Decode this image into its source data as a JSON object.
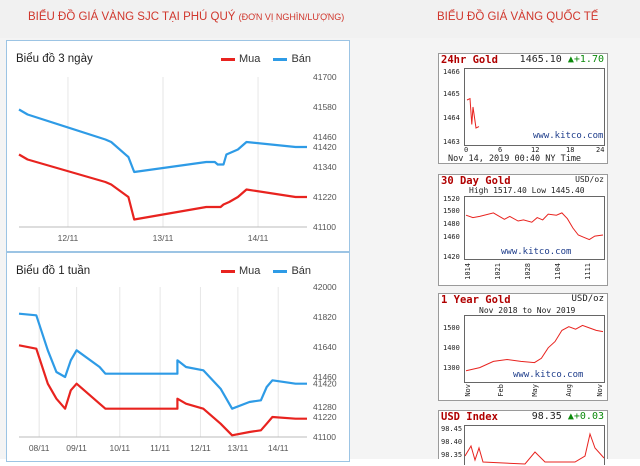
{
  "header": {
    "left_title": "BIỂU ĐỒ GIÁ VÀNG SJC TẠI PHÚ QUÝ",
    "left_unit": "(ĐƠN VỊ NGHÌN/LƯỢNG)",
    "right_title": "BIỂU ĐỒ GIÁ VÀNG QUỐC TẾ"
  },
  "colors": {
    "mua": "#e8231f",
    "ban": "#2e9be6",
    "brand_red": "#d0362c"
  },
  "chart_data": [
    {
      "type": "line",
      "title": "Biểu đồ 3 ngày",
      "legend": [
        "Mua",
        "Bán"
      ],
      "legend_position": "top-right",
      "ylim": [
        41100,
        41700
      ],
      "yticks": [
        41100,
        41220,
        41340,
        41420,
        41460,
        41580,
        41700
      ],
      "xticks": [
        {
          "t": 0.17,
          "label": "12/11"
        },
        {
          "t": 0.5,
          "label": "13/11"
        },
        {
          "t": 0.83,
          "label": "14/11"
        }
      ],
      "series": [
        {
          "name": "Bán",
          "color": "#2e9be6",
          "points": [
            [
              0,
              41570
            ],
            [
              0.03,
              41550
            ],
            [
              0.3,
              41450
            ],
            [
              0.32,
              41440
            ],
            [
              0.38,
              41380
            ],
            [
              0.4,
              41320
            ],
            [
              0.65,
              41360
            ],
            [
              0.68,
              41360
            ],
            [
              0.69,
              41350
            ],
            [
              0.7,
              41350
            ],
            [
              0.71,
              41350
            ],
            [
              0.72,
              41390
            ],
            [
              0.76,
              41410
            ],
            [
              0.79,
              41440
            ],
            [
              0.96,
              41420
            ],
            [
              1,
              41420
            ]
          ]
        },
        {
          "name": "Mua",
          "color": "#e8231f",
          "points": [
            [
              0,
              41390
            ],
            [
              0.03,
              41370
            ],
            [
              0.3,
              41280
            ],
            [
              0.32,
              41270
            ],
            [
              0.38,
              41220
            ],
            [
              0.4,
              41130
            ],
            [
              0.65,
              41180
            ],
            [
              0.68,
              41180
            ],
            [
              0.69,
              41180
            ],
            [
              0.7,
              41180
            ],
            [
              0.71,
              41190
            ],
            [
              0.73,
              41200
            ],
            [
              0.76,
              41220
            ],
            [
              0.79,
              41250
            ],
            [
              0.96,
              41220
            ],
            [
              1,
              41220
            ]
          ]
        }
      ]
    },
    {
      "type": "line",
      "title": "Biểu đồ 1 tuần",
      "legend": [
        "Mua",
        "Bán"
      ],
      "legend_position": "top-right",
      "ylim": [
        41100,
        42000
      ],
      "yticks": [
        41100,
        41220,
        41280,
        41420,
        41460,
        41640,
        41820,
        42000
      ],
      "xticks": [
        {
          "t": 0.07,
          "label": "08/11"
        },
        {
          "t": 0.2,
          "label": "09/11"
        },
        {
          "t": 0.35,
          "label": "10/11"
        },
        {
          "t": 0.49,
          "label": "11/11"
        },
        {
          "t": 0.63,
          "label": "12/11"
        },
        {
          "t": 0.76,
          "label": "13/11"
        },
        {
          "t": 0.9,
          "label": "14/11"
        }
      ],
      "series": [
        {
          "name": "Bán",
          "color": "#2e9be6",
          "points": [
            [
              0,
              41840
            ],
            [
              0.06,
              41830
            ],
            [
              0.1,
              41620
            ],
            [
              0.13,
              41490
            ],
            [
              0.16,
              41460
            ],
            [
              0.18,
              41560
            ],
            [
              0.2,
              41620
            ],
            [
              0.28,
              41520
            ],
            [
              0.3,
              41480
            ],
            [
              0.55,
              41480
            ],
            [
              0.55,
              41560
            ],
            [
              0.58,
              41520
            ],
            [
              0.64,
              41500
            ],
            [
              0.7,
              41390
            ],
            [
              0.74,
              41270
            ],
            [
              0.8,
              41310
            ],
            [
              0.84,
              41320
            ],
            [
              0.86,
              41400
            ],
            [
              0.88,
              41440
            ],
            [
              0.96,
              41420
            ],
            [
              1,
              41420
            ]
          ]
        },
        {
          "name": "Mua",
          "color": "#e8231f",
          "points": [
            [
              0,
              41650
            ],
            [
              0.06,
              41630
            ],
            [
              0.1,
              41420
            ],
            [
              0.13,
              41330
            ],
            [
              0.16,
              41270
            ],
            [
              0.18,
              41380
            ],
            [
              0.2,
              41420
            ],
            [
              0.28,
              41300
            ],
            [
              0.3,
              41270
            ],
            [
              0.55,
              41270
            ],
            [
              0.55,
              41330
            ],
            [
              0.58,
              41300
            ],
            [
              0.64,
              41270
            ],
            [
              0.7,
              41180
            ],
            [
              0.74,
              41110
            ],
            [
              0.8,
              41130
            ],
            [
              0.84,
              41140
            ],
            [
              0.86,
              41180
            ],
            [
              0.88,
              41220
            ],
            [
              0.96,
              41210
            ],
            [
              1,
              41210
            ]
          ]
        }
      ]
    }
  ],
  "kitco": [
    {
      "title": "24hr Gold",
      "price": "1465.10",
      "change": "+1.70",
      "y_ticks": [
        "1466",
        "1465",
        "1464",
        "1463"
      ],
      "x_ticks": [
        "0",
        "6",
        "12",
        "18",
        "24"
      ],
      "watermark": "www.kitco.com",
      "footer": "Nov 14, 2019 00:40 NY Time",
      "series": [
        [
          0,
          0.6
        ],
        [
          0.5,
          0.62
        ],
        [
          0.8,
          0.25
        ],
        [
          1,
          0.5
        ],
        [
          1.5,
          0.2
        ],
        [
          2,
          0.22
        ]
      ]
    },
    {
      "title": "30 Day Gold",
      "unit": "USD/oz",
      "high_low": "High 1517.40 Low 1445.40",
      "y_ticks": [
        "1520",
        "1500",
        "1480",
        "1460",
        "1420"
      ],
      "x_ticks": [
        "1014",
        "1021",
        "1028",
        "1104",
        "1111"
      ],
      "watermark": "www.kitco.com",
      "series": [
        [
          0,
          0.72
        ],
        [
          0.05,
          0.68
        ],
        [
          0.1,
          0.7
        ],
        [
          0.2,
          0.76
        ],
        [
          0.28,
          0.65
        ],
        [
          0.32,
          0.7
        ],
        [
          0.38,
          0.62
        ],
        [
          0.42,
          0.64
        ],
        [
          0.48,
          0.6
        ],
        [
          0.52,
          0.68
        ],
        [
          0.56,
          0.64
        ],
        [
          0.6,
          0.74
        ],
        [
          0.66,
          0.72
        ],
        [
          0.7,
          0.76
        ],
        [
          0.74,
          0.66
        ],
        [
          0.78,
          0.5
        ],
        [
          0.82,
          0.38
        ],
        [
          0.86,
          0.34
        ],
        [
          0.9,
          0.3
        ],
        [
          0.94,
          0.36
        ],
        [
          1,
          0.38
        ]
      ]
    },
    {
      "title": "1 Year Gold",
      "unit": "USD/oz",
      "range": "Nov 2018 to Nov 2019",
      "y_ticks": [
        "1500",
        "1400",
        "1300"
      ],
      "x_ticks": [
        "Nov",
        "Feb",
        "May",
        "Aug",
        "Nov"
      ],
      "watermark": "www.kitco.com",
      "series": [
        [
          0,
          0.15
        ],
        [
          0.1,
          0.2
        ],
        [
          0.2,
          0.3
        ],
        [
          0.3,
          0.33
        ],
        [
          0.4,
          0.3
        ],
        [
          0.5,
          0.28
        ],
        [
          0.55,
          0.35
        ],
        [
          0.6,
          0.52
        ],
        [
          0.65,
          0.62
        ],
        [
          0.7,
          0.8
        ],
        [
          0.75,
          0.86
        ],
        [
          0.8,
          0.82
        ],
        [
          0.85,
          0.88
        ],
        [
          0.9,
          0.84
        ],
        [
          0.95,
          0.8
        ],
        [
          1,
          0.78
        ]
      ]
    },
    {
      "title": "USD Index",
      "price": "98.35",
      "change": "+0.03",
      "y_ticks": [
        "98.45",
        "98.40",
        "98.35"
      ]
    }
  ]
}
